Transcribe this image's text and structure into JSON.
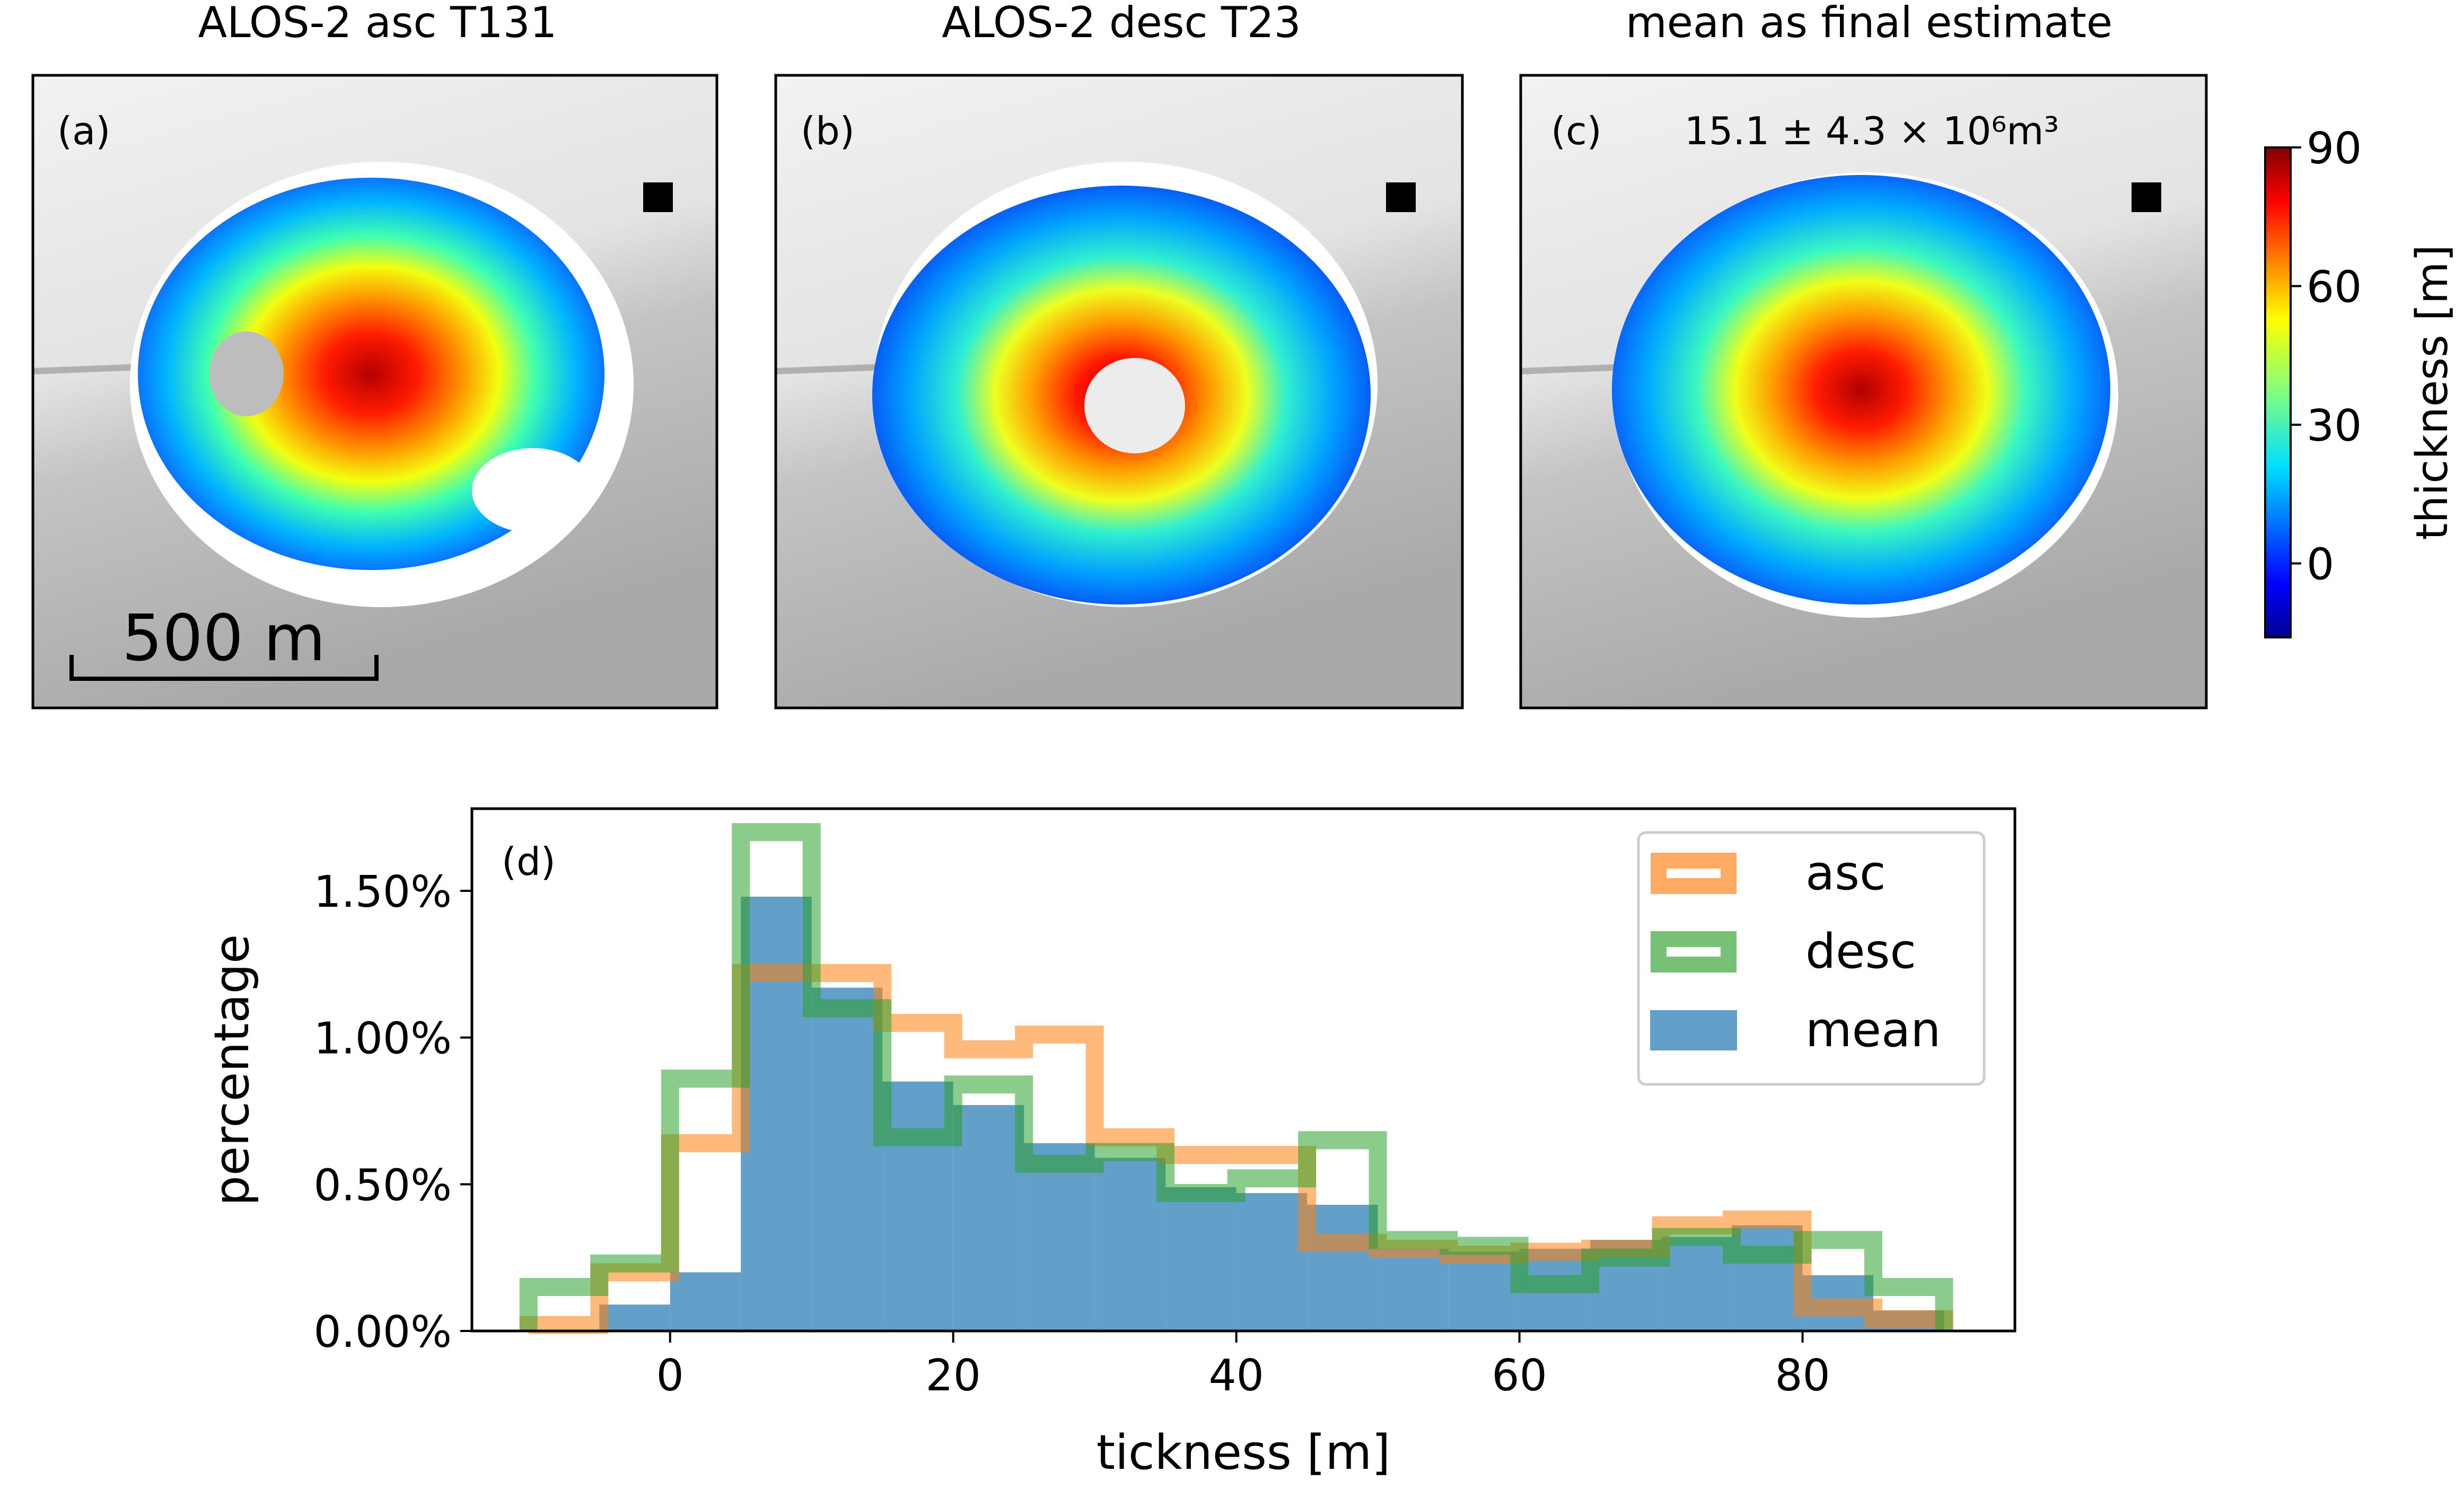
{
  "panels": [
    {
      "title": "ALOS-2 asc T131",
      "label": "(a)",
      "annotation": "",
      "scalebar": "500 m",
      "coverage": "asc"
    },
    {
      "title": "ALOS-2 desc T23",
      "label": "(b)",
      "annotation": "",
      "scalebar": "",
      "coverage": "desc"
    },
    {
      "title": "mean as final estimate",
      "label": "(c)",
      "annotation": "15.1 ± 4.3 × 10⁶m³",
      "scalebar": "",
      "coverage": "mean"
    }
  ],
  "colorbar": {
    "label": "thickness [m]",
    "ticks": [
      "90",
      "60",
      "30",
      "0"
    ],
    "tick_values": [
      90,
      60,
      30,
      0
    ],
    "range": [
      -16,
      90
    ],
    "colormap": "jet"
  },
  "chart_data": {
    "type": "histogram",
    "panel_label": "(d)",
    "xlabel": "tickness [m]",
    "ylabel": "percentage",
    "xlim": [
      -14,
      95
    ],
    "ylim": [
      0,
      1.78
    ],
    "xticks": [
      0,
      20,
      40,
      60,
      80
    ],
    "yticks": [
      0,
      0.5,
      1,
      1.5
    ],
    "ytick_labels": [
      "0.00%",
      "0.50%",
      "1.00%",
      "1.50%"
    ],
    "bin_edges": [
      -10,
      -5,
      0,
      5,
      10,
      15,
      20,
      25,
      30,
      35,
      40,
      45,
      50,
      55,
      60,
      65,
      70,
      75,
      80,
      85,
      90
    ],
    "series": [
      {
        "name": "asc",
        "style": "step",
        "color": "#ff7f0e",
        "values": [
          0.02,
          0.2,
          0.64,
          1.22,
          1.22,
          1.05,
          0.96,
          1.01,
          0.66,
          0.6,
          0.6,
          0.3,
          0.28,
          0.26,
          0.27,
          0.28,
          0.36,
          0.38,
          0.08,
          0.04
        ]
      },
      {
        "name": "desc",
        "style": "step",
        "color": "#2ca02c",
        "values": [
          0.15,
          0.23,
          0.86,
          1.7,
          1.1,
          0.66,
          0.84,
          0.57,
          0.61,
          0.47,
          0.52,
          0.65,
          0.31,
          0.29,
          0.16,
          0.25,
          0.32,
          0.26,
          0.31,
          0.15
        ]
      },
      {
        "name": "mean",
        "style": "filled",
        "color": "#1f77b4",
        "values": [
          0,
          0.09,
          0.2,
          1.48,
          1.17,
          0.85,
          0.77,
          0.64,
          0.59,
          0.49,
          0.47,
          0.43,
          0.28,
          0.27,
          0.28,
          0.31,
          0.32,
          0.36,
          0.19,
          0.07
        ]
      }
    ]
  }
}
